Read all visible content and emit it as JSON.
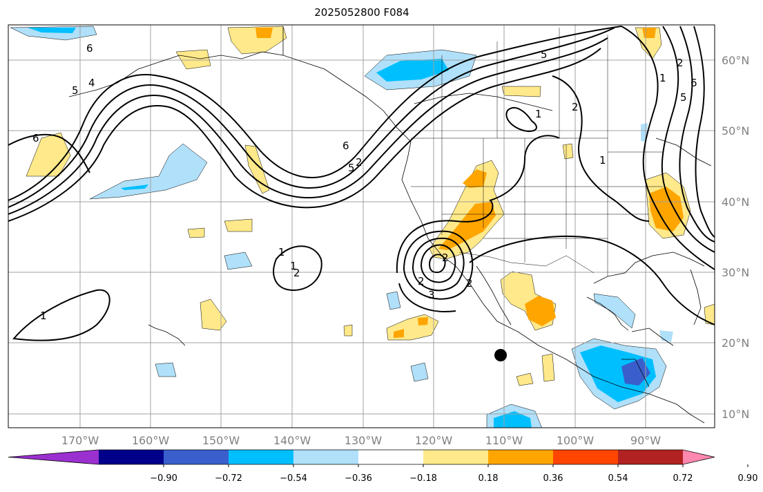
{
  "title": "2025052800 F084",
  "lat_labels": [
    "60°N",
    "50°N",
    "40°N",
    "30°N",
    "20°N",
    "10°N"
  ],
  "lon_labels": [
    "170°W",
    "160°W",
    "150°W",
    "140°W",
    "130°W",
    "120°W",
    "110°W",
    "100°W",
    "90°W"
  ],
  "colorbar": {
    "ticks": [
      "−0.90",
      "−0.72",
      "−0.54",
      "−0.36",
      "−0.18",
      "0.18",
      "0.36",
      "0.54",
      "0.72",
      "0.90"
    ],
    "colors": [
      "#9b30d0",
      "#00008b",
      "#3a5fcd",
      "#00bfff",
      "#b0e0fa",
      "#ffffff",
      "#ffe98a",
      "#ffa500",
      "#ff4500",
      "#b22222",
      "#ff88b0"
    ]
  },
  "contour_labels": [
    "6",
    "5",
    "4",
    "6",
    "6",
    "5",
    "2",
    "5",
    "2",
    "1",
    "1",
    "2",
    "6",
    "5",
    "1",
    "2",
    "1",
    "1",
    "2",
    "2",
    "3",
    "2",
    "1"
  ],
  "colors": {
    "contour": "#000000",
    "grid": "#a0a0a0",
    "land_outline": "#000000"
  }
}
